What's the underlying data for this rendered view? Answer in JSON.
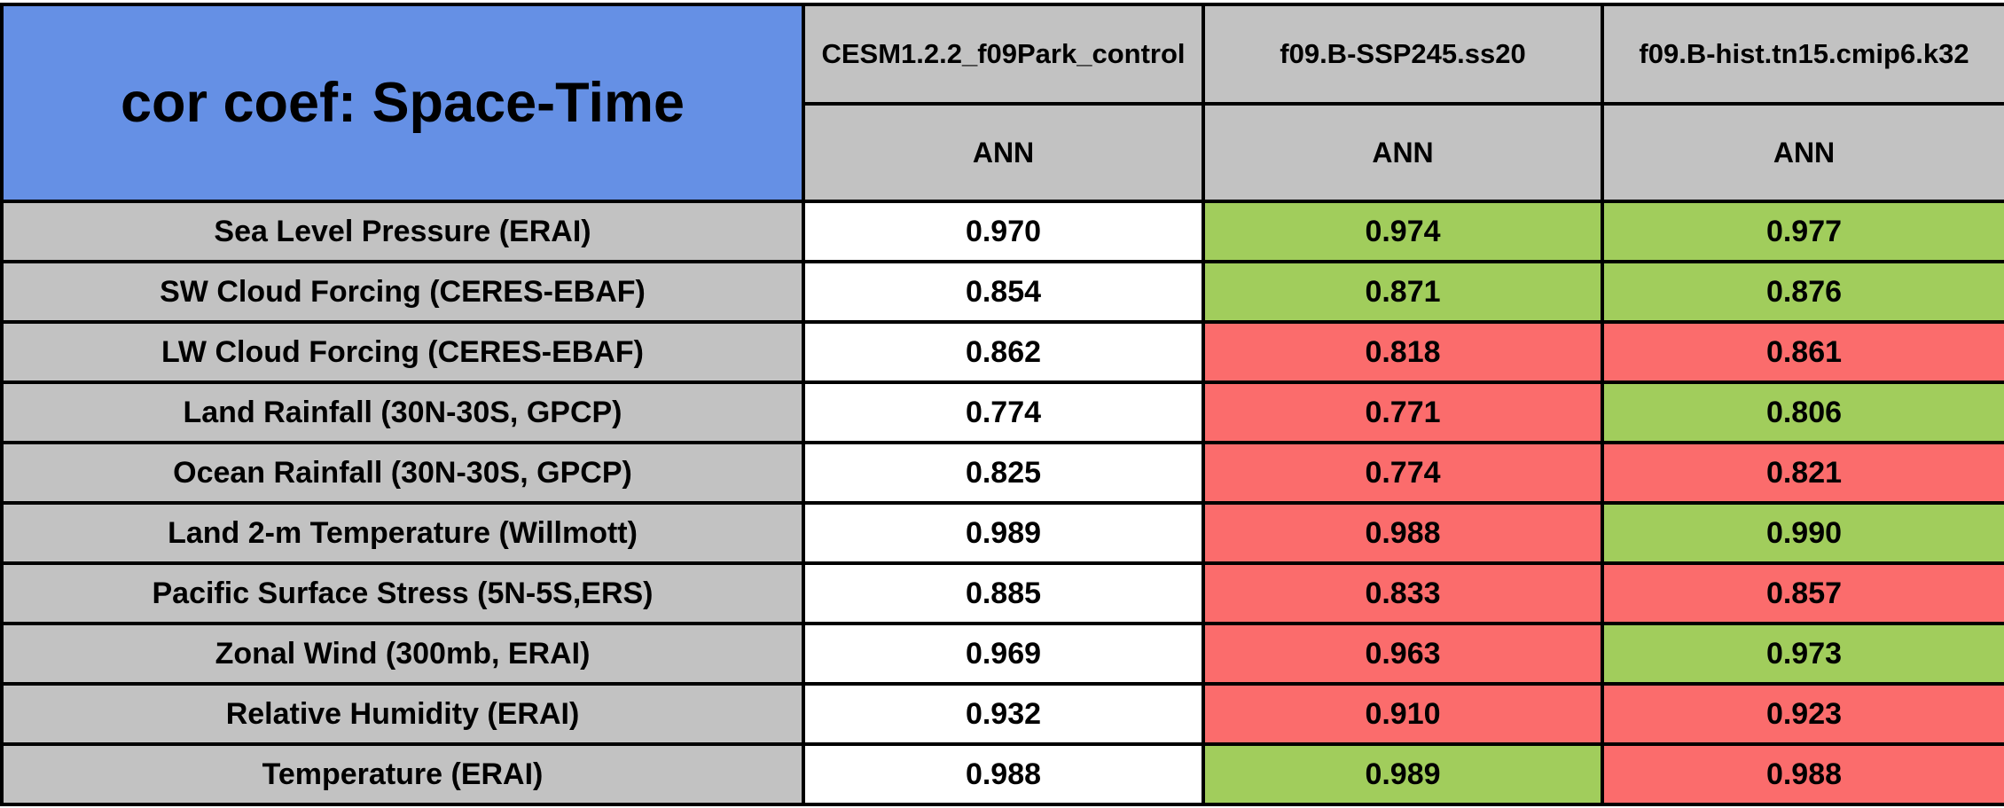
{
  "palette": {
    "title_blue": "#6590E5",
    "header_gray": "#C2C2C2",
    "better_green": "#A1CD5C",
    "worse_red": "#FB6C6C",
    "neutral_white": "#FFFFFF",
    "border_black": "#000000"
  },
  "chart_data": {
    "type": "table",
    "title": "cor coef: Space-Time",
    "legend_note_colors": {
      "green": "value better than control",
      "red": "value worse than control",
      "white": "control (reference) column"
    },
    "columns": [
      {
        "model": "CESM1.2.2_f09Park_control",
        "season": "ANN"
      },
      {
        "model": "f09.B-SSP245.ss20",
        "season": "ANN"
      },
      {
        "model": "f09.B-hist.tn15.cmip6.k32",
        "season": "ANN"
      }
    ],
    "categories": [
      "Sea Level Pressure (ERAI)",
      "SW Cloud Forcing (CERES-EBAF)",
      "LW Cloud Forcing (CERES-EBAF)",
      "Land Rainfall (30N-30S, GPCP)",
      "Ocean Rainfall (30N-30S, GPCP)",
      "Land 2-m Temperature (Willmott)",
      "Pacific Surface Stress (5N-5S,ERS)",
      "Zonal Wind (300mb, ERAI)",
      "Relative Humidity (ERAI)",
      "Temperature (ERAI)"
    ],
    "rows": [
      {
        "label": "Sea Level Pressure (ERAI)",
        "values": [
          0.97,
          0.974,
          0.977
        ],
        "colors": [
          "white",
          "green",
          "green"
        ]
      },
      {
        "label": "SW Cloud Forcing (CERES-EBAF)",
        "values": [
          0.854,
          0.871,
          0.876
        ],
        "colors": [
          "white",
          "green",
          "green"
        ]
      },
      {
        "label": "LW Cloud Forcing (CERES-EBAF)",
        "values": [
          0.862,
          0.818,
          0.861
        ],
        "colors": [
          "white",
          "red",
          "red"
        ]
      },
      {
        "label": "Land Rainfall (30N-30S, GPCP)",
        "values": [
          0.774,
          0.771,
          0.806
        ],
        "colors": [
          "white",
          "red",
          "green"
        ]
      },
      {
        "label": "Ocean Rainfall (30N-30S, GPCP)",
        "values": [
          0.825,
          0.774,
          0.821
        ],
        "colors": [
          "white",
          "red",
          "red"
        ]
      },
      {
        "label": "Land 2-m Temperature (Willmott)",
        "values": [
          0.989,
          0.988,
          0.99
        ],
        "colors": [
          "white",
          "red",
          "green"
        ]
      },
      {
        "label": "Pacific Surface Stress (5N-5S,ERS)",
        "values": [
          0.885,
          0.833,
          0.857
        ],
        "colors": [
          "white",
          "red",
          "red"
        ]
      },
      {
        "label": "Zonal Wind (300mb, ERAI)",
        "values": [
          0.969,
          0.963,
          0.973
        ],
        "colors": [
          "white",
          "red",
          "green"
        ]
      },
      {
        "label": "Relative Humidity (ERAI)",
        "values": [
          0.932,
          0.91,
          0.923
        ],
        "colors": [
          "white",
          "red",
          "red"
        ]
      },
      {
        "label": "Temperature (ERAI)",
        "values": [
          0.988,
          0.989,
          0.988
        ],
        "colors": [
          "white",
          "green",
          "red"
        ]
      }
    ]
  }
}
